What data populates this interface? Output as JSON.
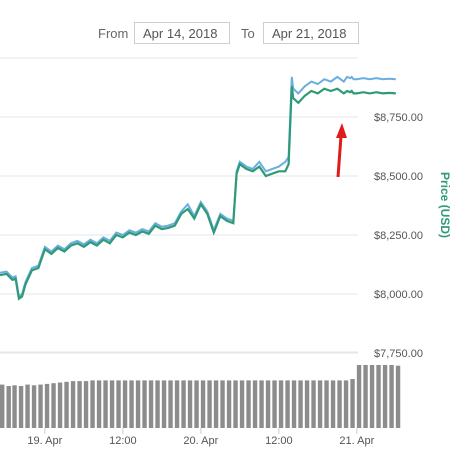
{
  "range": {
    "from_label": "From",
    "from_value": "Apr 14, 2018",
    "to_label": "To",
    "to_value": "Apr 21, 2018"
  },
  "colors": {
    "price_line": "#2e9a77",
    "light_line": "#6aaee0",
    "grid": "#e6e6e6",
    "volume_bar": "#8c8c8c",
    "arrow": "#e01b1b",
    "axis_title": "#2e9a77"
  },
  "chart_data": {
    "type": "line",
    "title": "",
    "ylabel": "Price (USD)",
    "xlabel": "",
    "ylim": [
      7650,
      9000
    ],
    "y_ticks": [
      {
        "value": 7750,
        "label": "$7,750.00"
      },
      {
        "value": 8000,
        "label": "$8,000.00"
      },
      {
        "value": 8250,
        "label": "$8,250.00"
      },
      {
        "value": 8500,
        "label": "$8,500.00"
      },
      {
        "value": 8750,
        "label": "$8,750.00"
      }
    ],
    "x_ticks": [
      {
        "value": 0,
        "label": "19. Apr"
      },
      {
        "value": 12,
        "label": "12:00"
      },
      {
        "value": 24,
        "label": "20. Apr"
      },
      {
        "value": 36,
        "label": "12:00"
      },
      {
        "value": 48,
        "label": "21. Apr"
      }
    ],
    "grid": true,
    "series": [
      {
        "role": "light",
        "x": [
          -6.9,
          -5.9,
          -5,
          -4.5,
          -4,
          -3.5,
          -3,
          -2,
          -1,
          0,
          1,
          2,
          3,
          4,
          5,
          6,
          7,
          8,
          9,
          10,
          11,
          12,
          13,
          14,
          15,
          16,
          17,
          18,
          19,
          20,
          21,
          22,
          23,
          24,
          25,
          26,
          27,
          28,
          29,
          29.5,
          30,
          31,
          32,
          33,
          34,
          35,
          36,
          37,
          37.5,
          38,
          38.2,
          39,
          40,
          41,
          42,
          43,
          44,
          45,
          46,
          46.5,
          47,
          47.2,
          47.5,
          48,
          49,
          50,
          51,
          52,
          53,
          54
        ],
        "values": [
          8090,
          8095,
          8070,
          8075,
          7990,
          8000,
          8050,
          8110,
          8120,
          8200,
          8180,
          8205,
          8190,
          8215,
          8225,
          8210,
          8230,
          8215,
          8240,
          8225,
          8260,
          8250,
          8270,
          8260,
          8275,
          8265,
          8300,
          8285,
          8290,
          8300,
          8350,
          8380,
          8330,
          8390,
          8350,
          8270,
          8340,
          8320,
          8310,
          8520,
          8560,
          8540,
          8530,
          8560,
          8520,
          8530,
          8540,
          8560,
          8580,
          8920,
          8870,
          8850,
          8880,
          8900,
          8890,
          8910,
          8900,
          8920,
          8900,
          8920,
          8915,
          8920,
          8910,
          8910,
          8915,
          8910,
          8915,
          8910,
          8912,
          8910
        ],
        "values_note": "upper (lighter) line"
      },
      {
        "role": "main",
        "x": [
          -6.9,
          -5.9,
          -5,
          -4.5,
          -4,
          -3.5,
          -3,
          -2,
          -1,
          0,
          1,
          2,
          3,
          4,
          5,
          6,
          7,
          8,
          9,
          10,
          11,
          12,
          13,
          14,
          15,
          16,
          17,
          18,
          19,
          20,
          21,
          22,
          23,
          24,
          25,
          26,
          27,
          28,
          29,
          29.5,
          30,
          31,
          32,
          33,
          34,
          35,
          36,
          37,
          37.5,
          38,
          38.2,
          39,
          40,
          41,
          42,
          43,
          44,
          45,
          46,
          46.5,
          47,
          47.2,
          47.5,
          48,
          49,
          50,
          51,
          52,
          53,
          54
        ],
        "values": [
          8080,
          8085,
          8060,
          8065,
          7980,
          7990,
          8040,
          8100,
          8110,
          8190,
          8170,
          8195,
          8180,
          8205,
          8215,
          8200,
          8220,
          8205,
          8230,
          8215,
          8250,
          8240,
          8260,
          8250,
          8265,
          8255,
          8290,
          8275,
          8280,
          8290,
          8340,
          8360,
          8320,
          8380,
          8340,
          8260,
          8330,
          8310,
          8300,
          8510,
          8550,
          8530,
          8520,
          8540,
          8500,
          8510,
          8520,
          8520,
          8550,
          8880,
          8830,
          8810,
          8840,
          8860,
          8850,
          8870,
          8860,
          8870,
          8850,
          8860,
          8855,
          8860,
          8850,
          8850,
          8855,
          8850,
          8855,
          8850,
          8852,
          8850
        ]
      }
    ],
    "volume": {
      "x": [
        -6.9,
        -5.9,
        -5,
        -4,
        -3,
        -2,
        -1,
        0,
        1,
        2,
        3,
        4,
        5,
        6,
        7,
        8,
        9,
        10,
        11,
        12,
        13,
        14,
        15,
        16,
        17,
        18,
        19,
        20,
        21,
        22,
        23,
        24,
        25,
        26,
        27,
        28,
        29,
        30,
        31,
        32,
        33,
        34,
        35,
        36,
        37,
        38,
        39,
        40,
        41,
        42,
        43,
        44,
        45,
        46,
        47,
        48,
        49,
        50,
        51,
        52,
        53,
        54
      ],
      "values": [
        0.62,
        0.6,
        0.61,
        0.6,
        0.62,
        0.61,
        0.62,
        0.63,
        0.64,
        0.65,
        0.66,
        0.67,
        0.67,
        0.67,
        0.68,
        0.68,
        0.68,
        0.68,
        0.68,
        0.68,
        0.68,
        0.68,
        0.68,
        0.68,
        0.68,
        0.68,
        0.68,
        0.68,
        0.68,
        0.68,
        0.68,
        0.68,
        0.68,
        0.68,
        0.68,
        0.68,
        0.68,
        0.68,
        0.68,
        0.68,
        0.68,
        0.68,
        0.68,
        0.68,
        0.68,
        0.68,
        0.68,
        0.68,
        0.68,
        0.68,
        0.68,
        0.68,
        0.68,
        0.68,
        0.7,
        0.9,
        0.9,
        0.9,
        0.9,
        0.9,
        0.9,
        0.89
      ]
    }
  }
}
